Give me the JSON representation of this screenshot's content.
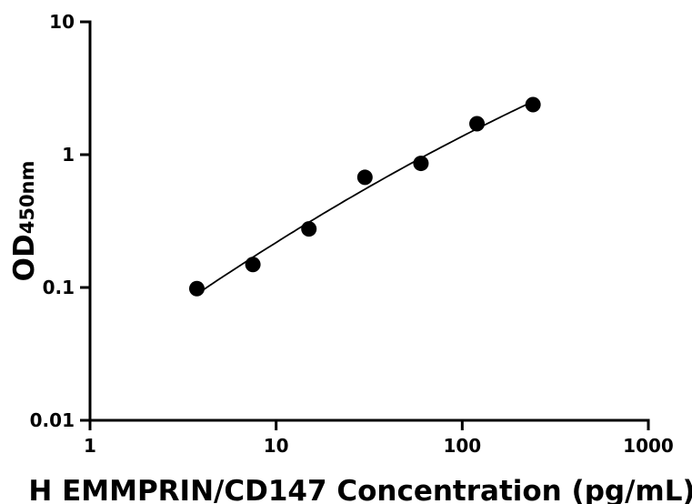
{
  "chart_data": {
    "type": "scatter",
    "xlabel": "H EMMPRIN/CD147 Concentration (pg/mL)",
    "ylabel": {
      "main": "OD",
      "subscript": "450nm"
    },
    "xscale": "log",
    "yscale": "log",
    "xlim": [
      1,
      1000
    ],
    "ylim": [
      0.01,
      10
    ],
    "x_ticks": [
      1,
      10,
      100,
      1000
    ],
    "x_tick_labels": [
      "1",
      "10",
      "100",
      "1000"
    ],
    "y_ticks": [
      0.01,
      0.1,
      1,
      10
    ],
    "y_tick_labels": [
      "0.01",
      "0.1",
      "1",
      "10"
    ],
    "grid": false,
    "series": [
      {
        "x": [
          3.75,
          7.5,
          15,
          30,
          60,
          120,
          240
        ],
        "y": [
          0.098,
          0.149,
          0.276,
          0.675,
          0.86,
          1.71,
          2.38
        ],
        "fit_curve": true
      }
    ],
    "colors": {
      "points": "#000000",
      "curve": "#000000",
      "axes": "#000000"
    }
  }
}
